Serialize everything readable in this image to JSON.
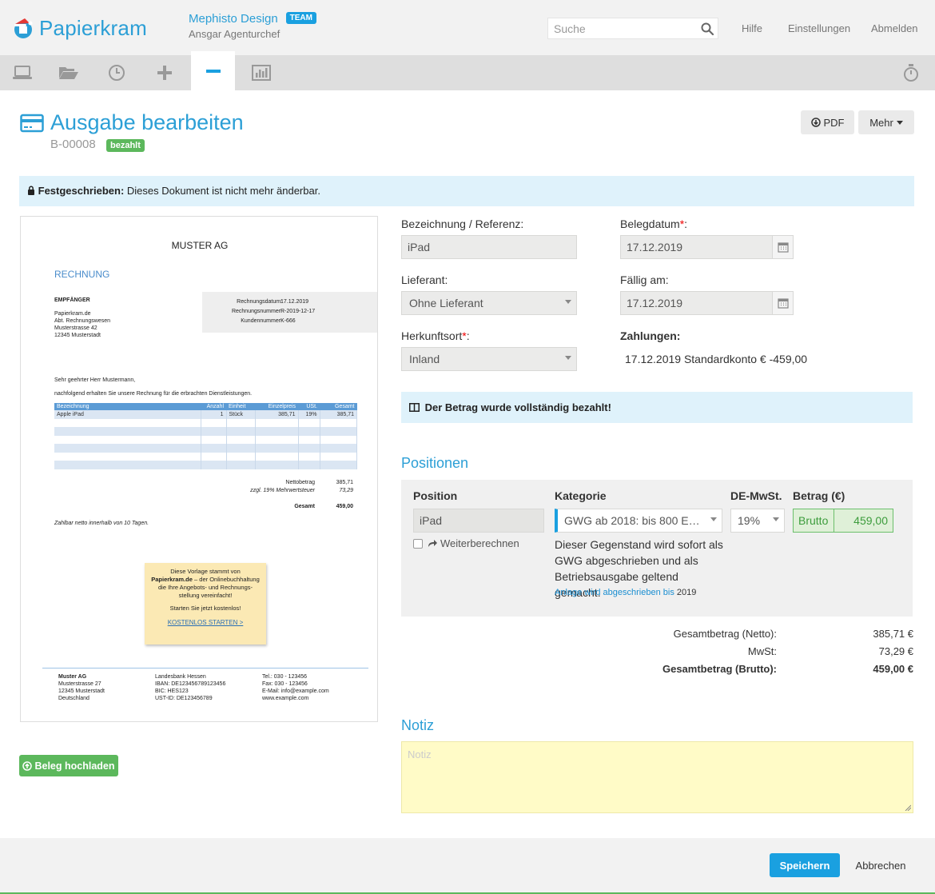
{
  "header": {
    "app_name": "Papierkram",
    "company_name": "Mephisto Design",
    "team_badge": "TEAM",
    "user_name": "Ansgar Agenturchef",
    "search_placeholder": "Suche",
    "links": {
      "help": "Hilfe",
      "settings": "Einstellungen",
      "logout": "Abmelden"
    }
  },
  "nav": {
    "items": [
      "dashboard-icon",
      "folder-icon",
      "clock-icon",
      "plus-icon",
      "minus-icon",
      "chart-icon"
    ],
    "active": "minus-icon",
    "right_icon": "stopwatch-icon"
  },
  "page": {
    "title": "Ausgabe bearbeiten",
    "doc_number": "B-00008",
    "status": "bezahlt",
    "pdf_button": "PDF",
    "more_button": "Mehr",
    "locked_strong": "Festgeschrieben:",
    "locked_text": " Dieses Dokument ist nicht mehr änderbar."
  },
  "preview": {
    "company": "MUSTER AG",
    "doc_type": "RECHNUNG",
    "recipient_label": "EMPFÄNGER",
    "recipient_lines": [
      "Papierkram.de",
      "Abt. Rechnungswesen",
      "Musterstrasse 42",
      "12345 Musterstadt"
    ],
    "meta": [
      {
        "label": "Rechnungsdatum:",
        "value": "17.12.2019"
      },
      {
        "label": "Rechnungsnummer:",
        "value": "R-2019-12-17"
      },
      {
        "label": "Kundennummer:",
        "value": "K-666"
      }
    ],
    "salutation": "Sehr geehrter Herr Mustermann,",
    "intro": "nachfolgend erhalten Sie unsere Rechnung für die erbrachten Dienstleistungen.",
    "table_headers": [
      "Bezeichnung",
      "Anzahl",
      "Einheit",
      "Einzelpreis",
      "USt.",
      "Gesamt"
    ],
    "table_row": [
      "Apple iPad",
      "1",
      "Stück",
      "385,71",
      "19%",
      "385,71"
    ],
    "net_label": "Nettobetrag",
    "net_value": "385,71",
    "vat_label": "zzgl. 19% Mehrwertsteuer",
    "vat_value": "73,29",
    "total_label": "Gesamt",
    "total_value": "459,00",
    "payment_terms": "Zahlbar netto innerhalb von 10 Tagen.",
    "note_line1": "Diese Vorlage stammt von",
    "note_brand": "Papierkram.de",
    "note_line2": " – der Onlinebuchhaltung",
    "note_line3": "die Ihre Angebots- und Rechnungs-",
    "note_line4": "stellung vereinfacht!",
    "note_line5": "Starten Sie jetzt kostenlos!",
    "note_link": "KOSTENLOS STARTEN >",
    "footer_col1": [
      "Muster AG",
      "Musterstrasse 27",
      "12345 Musterstadt",
      "Deutschland"
    ],
    "footer_col2": [
      "Landesbank Hessen",
      "IBAN: DE123456789123456",
      "BIC:     HES123",
      "UST-ID: DE123456789"
    ],
    "footer_col3": [
      "Tel.: 030 - 123456",
      "Fax: 030 - 123456",
      "E-Mail: info@example.com",
      "www.example.com"
    ]
  },
  "upload_button": "Beleg hochladen",
  "form": {
    "reference_label": "Bezeichnung / Referenz:",
    "reference_value": "iPad",
    "doc_date_label": "Belegdatum",
    "doc_date_value": "17.12.2019",
    "supplier_label": "Lieferant:",
    "supplier_value": "Ohne Lieferant",
    "due_label": "Fällig am:",
    "due_value": "17.12.2019",
    "origin_label": "Herkunftsort",
    "origin_value": "Inland",
    "payments_label": "Zahlungen:",
    "payment_entry": "17.12.2019 Standardkonto € -459,00",
    "paid_notice": "Der Betrag wurde vollständig bezahlt!"
  },
  "positions": {
    "title": "Positionen",
    "headers": {
      "position": "Position",
      "category": "Kategorie",
      "vat": "DE-MwSt.",
      "amount": "Betrag (€)"
    },
    "item_value": "iPad",
    "category_value": "GWG ab 2018: bis 800 E…",
    "vat_value": "19%",
    "amount_mode": "Brutto",
    "amount_value": "459,00",
    "recharge_label": "Weiterberechnen",
    "gwg_text": "Dieser Gegenstand wird sofort als GWG abgeschrieben und als Betriebsausgabe geltend gemacht.",
    "depreciation_link": "Anlage wird abgeschrieben bis",
    "depreciation_year": "2019"
  },
  "totals": {
    "net_label": "Gesamtbetrag (Netto):",
    "net_value": "385,71 €",
    "vat_label": "MwSt:",
    "vat_value": "73,29 €",
    "gross_label": "Gesamtbetrag (Brutto):",
    "gross_value": "459,00 €"
  },
  "note": {
    "title": "Notiz",
    "placeholder": "Notiz"
  },
  "footer": {
    "save": "Speichern",
    "cancel": "Abbrechen"
  },
  "colors": {
    "brand_blue": "#2c9fd6",
    "primary": "#1aa0e0",
    "success": "#5cb85c",
    "info_bg": "#dff2fb",
    "note_bg": "#fffbc7"
  }
}
